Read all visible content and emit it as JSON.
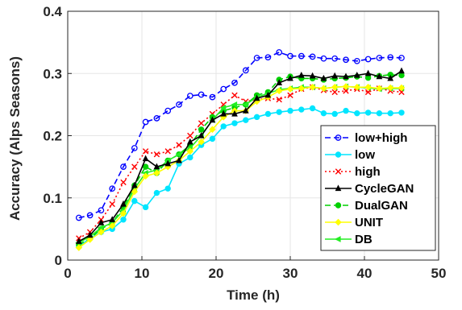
{
  "chart_data": {
    "type": "line",
    "title": "",
    "xlabel": "Time (h)",
    "ylabel": "Accuracy (Alps Seasons)",
    "xlim": [
      0,
      50
    ],
    "ylim": [
      0,
      0.4
    ],
    "xticks": [
      0,
      10,
      20,
      30,
      40,
      50
    ],
    "yticks": [
      0,
      0.1,
      0.2,
      0.3,
      0.4
    ],
    "ytick_labels": [
      "0",
      "0.1",
      "0.2",
      "0.3",
      "0.4"
    ],
    "grid": true,
    "legend_position": "bottom-right",
    "x": [
      1.5,
      3,
      4.5,
      6,
      7.5,
      9,
      10.5,
      12,
      13.5,
      15,
      16.5,
      18,
      19.5,
      21,
      22.5,
      24,
      25.5,
      27,
      28.5,
      30,
      31.5,
      33,
      34.5,
      36,
      37.5,
      39,
      40.5,
      42,
      43.5,
      45
    ],
    "series": [
      {
        "name": "low+high",
        "color": "#0000ff",
        "line_style": "dashed",
        "marker": "circle-open",
        "values": [
          0.068,
          0.072,
          0.08,
          0.115,
          0.15,
          0.18,
          0.222,
          0.228,
          0.24,
          0.25,
          0.264,
          0.266,
          0.262,
          0.275,
          0.285,
          0.305,
          0.325,
          0.326,
          0.334,
          0.328,
          0.328,
          0.327,
          0.324,
          0.324,
          0.322,
          0.32,
          0.323,
          0.325,
          0.326,
          0.325
        ]
      },
      {
        "name": "low",
        "color": "#00e5ff",
        "line_style": "solid",
        "marker": "circle-filled",
        "values": [
          0.022,
          0.035,
          0.045,
          0.05,
          0.065,
          0.095,
          0.085,
          0.108,
          0.115,
          0.155,
          0.165,
          0.185,
          0.195,
          0.215,
          0.22,
          0.225,
          0.23,
          0.235,
          0.238,
          0.24,
          0.242,
          0.244,
          0.236,
          0.235,
          0.24,
          0.236,
          0.237,
          0.236,
          0.236,
          0.237
        ]
      },
      {
        "name": "high",
        "color": "#ff0000",
        "line_style": "dotted",
        "marker": "x",
        "values": [
          0.035,
          0.045,
          0.065,
          0.09,
          0.125,
          0.15,
          0.175,
          0.17,
          0.175,
          0.185,
          0.2,
          0.22,
          0.235,
          0.25,
          0.265,
          0.255,
          0.258,
          0.26,
          0.258,
          0.265,
          0.275,
          0.278,
          0.273,
          0.27,
          0.272,
          0.275,
          0.27,
          0.276,
          0.272,
          0.27
        ]
      },
      {
        "name": "CycleGAN",
        "color": "#000000",
        "line_style": "solid",
        "marker": "triangle",
        "values": [
          0.03,
          0.04,
          0.06,
          0.065,
          0.09,
          0.12,
          0.163,
          0.15,
          0.155,
          0.16,
          0.19,
          0.2,
          0.225,
          0.235,
          0.235,
          0.24,
          0.26,
          0.265,
          0.285,
          0.292,
          0.297,
          0.296,
          0.292,
          0.296,
          0.295,
          0.297,
          0.3,
          0.295,
          0.292,
          0.304
        ]
      },
      {
        "name": "DualGAN",
        "color": "#00d000",
        "line_style": "dashed",
        "marker": "circle-filled",
        "values": [
          0.025,
          0.035,
          0.05,
          0.06,
          0.085,
          0.12,
          0.15,
          0.14,
          0.16,
          0.17,
          0.185,
          0.21,
          0.23,
          0.24,
          0.245,
          0.25,
          0.265,
          0.27,
          0.29,
          0.295,
          0.292,
          0.292,
          0.29,
          0.292,
          0.293,
          0.295,
          0.293,
          0.296,
          0.298,
          0.297
        ]
      },
      {
        "name": "UNIT",
        "color": "#ffff00",
        "line_style": "solid",
        "marker": "diamond",
        "values": [
          0.02,
          0.033,
          0.045,
          0.055,
          0.075,
          0.11,
          0.135,
          0.14,
          0.15,
          0.16,
          0.175,
          0.19,
          0.21,
          0.23,
          0.24,
          0.24,
          0.255,
          0.262,
          0.272,
          0.275,
          0.276,
          0.278,
          0.276,
          0.278,
          0.279,
          0.278,
          0.278,
          0.276,
          0.277,
          0.277
        ]
      },
      {
        "name": "DB",
        "color": "#22ee22",
        "line_style": "solid",
        "marker": "triangle-left",
        "values": [
          0.028,
          0.038,
          0.052,
          0.06,
          0.08,
          0.115,
          0.14,
          0.145,
          0.16,
          0.17,
          0.18,
          0.2,
          0.225,
          0.245,
          0.25,
          0.25,
          0.262,
          0.268,
          0.274,
          0.276,
          0.278,
          0.278,
          0.276,
          0.278,
          0.279,
          0.278,
          0.277,
          0.275,
          0.276,
          0.276
        ]
      }
    ]
  }
}
